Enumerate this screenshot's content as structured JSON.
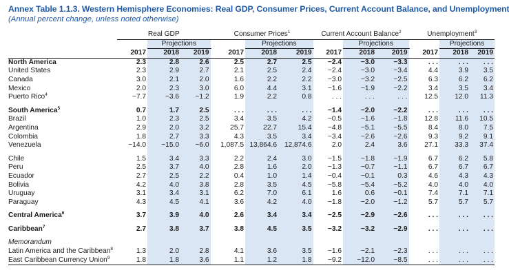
{
  "title": "Annex Table 1.1.3. Western Hemisphere Economies: Real GDP, Consumer Prices, Current Account Balance, and Unemployment",
  "subtitle": "(Annual percent change, unless noted otherwise)",
  "groups": [
    {
      "label": "Real GDP",
      "note": ""
    },
    {
      "label": "Consumer Prices",
      "note": "1"
    },
    {
      "label": "Current Account Balance",
      "note": "2"
    },
    {
      "label": "Unemployment",
      "note": "3"
    }
  ],
  "projections_label": "Projections",
  "years": [
    "2017",
    "2018",
    "2019"
  ],
  "sections": [
    {
      "rows": [
        {
          "label": "North America",
          "note": "",
          "bold": true,
          "values": [
            "2.3",
            "2.8",
            "2.6",
            "2.5",
            "2.7",
            "2.5",
            "−2.4",
            "−3.0",
            "−3.3",
            ". . .",
            ". . .",
            ". . ."
          ]
        },
        {
          "label": "United States",
          "note": "",
          "bold": false,
          "values": [
            "2.3",
            "2.9",
            "2.7",
            "2.1",
            "2.5",
            "2.4",
            "−2.4",
            "−3.0",
            "−3.4",
            "4.4",
            "3.9",
            "3.5"
          ]
        },
        {
          "label": "Canada",
          "note": "",
          "bold": false,
          "values": [
            "3.0",
            "2.1",
            "2.0",
            "1.6",
            "2.2",
            "2.2",
            "−3.0",
            "−3.2",
            "−2.5",
            "6.3",
            "6.2",
            "6.2"
          ]
        },
        {
          "label": "Mexico",
          "note": "",
          "bold": false,
          "values": [
            "2.0",
            "2.3",
            "3.0",
            "6.0",
            "4.4",
            "3.1",
            "−1.6",
            "−1.9",
            "−2.2",
            "3.4",
            "3.5",
            "3.4"
          ]
        },
        {
          "label": "Puerto Rico",
          "note": "4",
          "bold": false,
          "values": [
            "−7.7",
            "−3.6",
            "−1.2",
            "1.9",
            "2.2",
            "0.8",
            ". . .",
            ". . .",
            ". . .",
            "12.5",
            "12.0",
            "11.3"
          ]
        }
      ]
    },
    {
      "rows": [
        {
          "label": "South America",
          "note": "5",
          "bold": true,
          "values": [
            "0.7",
            "1.7",
            "2.5",
            ". . .",
            ". . .",
            ". . .",
            "−1.4",
            "−2.0",
            "−2.2",
            ". . .",
            ". . .",
            ". . ."
          ]
        },
        {
          "label": "Brazil",
          "note": "",
          "bold": false,
          "values": [
            "1.0",
            "2.3",
            "2.5",
            "3.4",
            "3.5",
            "4.2",
            "−0.5",
            "−1.6",
            "−1.8",
            "12.8",
            "11.6",
            "10.5"
          ]
        },
        {
          "label": "Argentina",
          "note": "",
          "bold": false,
          "values": [
            "2.9",
            "2.0",
            "3.2",
            "25.7",
            "22.7",
            "15.4",
            "−4.8",
            "−5.1",
            "−5.5",
            "8.4",
            "8.0",
            "7.5"
          ]
        },
        {
          "label": "Colombia",
          "note": "",
          "bold": false,
          "values": [
            "1.8",
            "2.7",
            "3.3",
            "4.3",
            "3.5",
            "3.4",
            "−3.4",
            "−2.6",
            "−2.6",
            "9.3",
            "9.2",
            "9.1"
          ]
        },
        {
          "label": "Venezuela",
          "note": "",
          "bold": false,
          "values": [
            "−14.0",
            "−15.0",
            "−6.0",
            "1,087.5",
            "13,864.6",
            "12,874.6",
            "2.0",
            "2.4",
            "3.6",
            "27.1",
            "33.3",
            "37.4"
          ]
        }
      ]
    },
    {
      "rows": [
        {
          "label": "Chile",
          "note": "",
          "bold": false,
          "values": [
            "1.5",
            "3.4",
            "3.3",
            "2.2",
            "2.4",
            "3.0",
            "−1.5",
            "−1.8",
            "−1.9",
            "6.7",
            "6.2",
            "5.8"
          ]
        },
        {
          "label": "Peru",
          "note": "",
          "bold": false,
          "values": [
            "2.5",
            "3.7",
            "4.0",
            "2.8",
            "1.6",
            "2.0",
            "−1.3",
            "−0.7",
            "−1.1",
            "6.7",
            "6.7",
            "6.7"
          ]
        },
        {
          "label": "Ecuador",
          "note": "",
          "bold": false,
          "values": [
            "2.7",
            "2.5",
            "2.2",
            "0.4",
            "1.0",
            "1.4",
            "−0.4",
            "−0.1",
            "0.3",
            "4.6",
            "4.3",
            "4.3"
          ]
        },
        {
          "label": "Bolivia",
          "note": "",
          "bold": false,
          "values": [
            "4.2",
            "4.0",
            "3.8",
            "2.8",
            "3.5",
            "4.5",
            "−5.8",
            "−5.4",
            "−5.2",
            "4.0",
            "4.0",
            "4.0"
          ]
        },
        {
          "label": "Uruguay",
          "note": "",
          "bold": false,
          "values": [
            "3.1",
            "3.4",
            "3.1",
            "6.2",
            "7.0",
            "6.1",
            "1.6",
            "0.6",
            "−0.1",
            "7.4",
            "7.1",
            "7.1"
          ]
        },
        {
          "label": "Paraguay",
          "note": "",
          "bold": false,
          "values": [
            "4.3",
            "4.5",
            "4.1",
            "3.6",
            "4.2",
            "4.0",
            "−1.8",
            "−2.0",
            "−1.2",
            "5.7",
            "5.7",
            "5.7"
          ]
        }
      ]
    },
    {
      "rows": [
        {
          "label": "Central America",
          "note": "6",
          "bold": true,
          "values": [
            "3.7",
            "3.9",
            "4.0",
            "2.6",
            "3.4",
            "3.4",
            "−2.5",
            "−2.9",
            "−2.6",
            ". . .",
            ". . .",
            ". . ."
          ]
        }
      ]
    },
    {
      "rows": [
        {
          "label": "Caribbean",
          "note": "7",
          "bold": true,
          "values": [
            "2.7",
            "3.8",
            "3.7",
            "3.8",
            "4.5",
            "3.5",
            "−3.2",
            "−3.2",
            "−2.9",
            ". . .",
            ". . .",
            ". . ."
          ]
        }
      ]
    }
  ],
  "memorandum": {
    "label": "Memorandum",
    "rows": [
      {
        "label": "Latin America and the Caribbean",
        "note": "8",
        "bold": false,
        "values": [
          "1.3",
          "2.0",
          "2.8",
          "4.1",
          "3.6",
          "3.5",
          "−1.6",
          "−2.1",
          "−2.3",
          ". . .",
          ". . .",
          ". . ."
        ]
      },
      {
        "label": "East Caribbean Currency Union",
        "note": "9",
        "bold": false,
        "values": [
          "1.8",
          "1.8",
          "3.6",
          "1.1",
          "1.2",
          "1.8",
          "−9.2",
          "−12.0",
          "−8.5",
          ". . .",
          ". . .",
          ". . ."
        ]
      }
    ]
  }
}
